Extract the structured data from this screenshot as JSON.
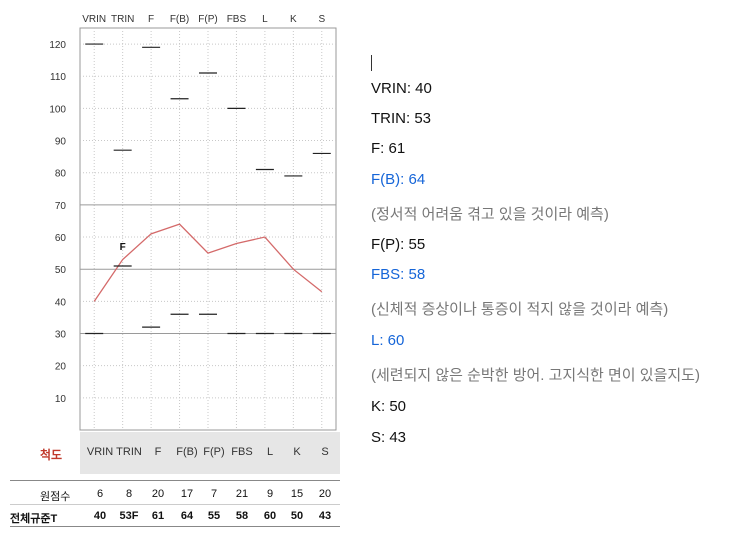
{
  "chart_data": {
    "type": "line",
    "categories": [
      "VRIN",
      "TRIN",
      "F",
      "F(B)",
      "F(P)",
      "FBS",
      "L",
      "K",
      "S"
    ],
    "ylim": [
      0,
      125
    ],
    "yticks": [
      10,
      20,
      30,
      40,
      50,
      60,
      70,
      80,
      90,
      100,
      110,
      120
    ],
    "grid": true,
    "profile_line": {
      "color": "#d46a6a",
      "categories": [
        "VRIN",
        "TRIN",
        "F",
        "F(B)",
        "F(P)",
        "FBS",
        "L",
        "K",
        "S"
      ],
      "values": [
        40,
        53,
        61,
        64,
        55,
        58,
        60,
        50,
        43
      ]
    },
    "upper_markers": [
      120,
      87,
      119,
      103,
      111,
      100,
      81,
      79,
      86
    ],
    "lower_markers": [
      30,
      51,
      32,
      36,
      36,
      30,
      30,
      30,
      30
    ],
    "annotation": {
      "text": "F",
      "category": "TRIN",
      "y": 56
    }
  },
  "scale_row": {
    "title": "척도",
    "labels": [
      "VRIN",
      "TRIN",
      "F",
      "F(B)",
      "F(P)",
      "FBS",
      "L",
      "K",
      "S"
    ]
  },
  "raw_scores": {
    "label": "원점수",
    "values": [
      "6",
      "8",
      "20",
      "17",
      "7",
      "21",
      "9",
      "15",
      "20"
    ]
  },
  "t_scores": {
    "label": "전체규준T",
    "values": [
      "40",
      "53F",
      "61",
      "64",
      "55",
      "58",
      "60",
      "50",
      "43"
    ]
  },
  "notes": [
    {
      "text": "VRIN: 40",
      "style": "plain"
    },
    {
      "text": "TRIN: 53",
      "style": "plain"
    },
    {
      "text": "F: 61",
      "style": "plain"
    },
    {
      "text": "F(B): 64",
      "style": "blue"
    },
    {
      "text": "(정서적 어려움 겪고 있을 것이라 예측)",
      "style": "grey"
    },
    {
      "text": "F(P): 55",
      "style": "plain"
    },
    {
      "text": "FBS: 58",
      "style": "blue"
    },
    {
      "text": "(신체적 증상이나 통증이 적지 않을 것이라 예측)",
      "style": "grey"
    },
    {
      "text": "L: 60",
      "style": "blue"
    },
    {
      "text": "(세련되지 않은 순박한 방어. 고지식한 면이 있을지도)",
      "style": "grey"
    },
    {
      "text": "K: 50",
      "style": "plain"
    },
    {
      "text": "S: 43",
      "style": "plain"
    }
  ]
}
